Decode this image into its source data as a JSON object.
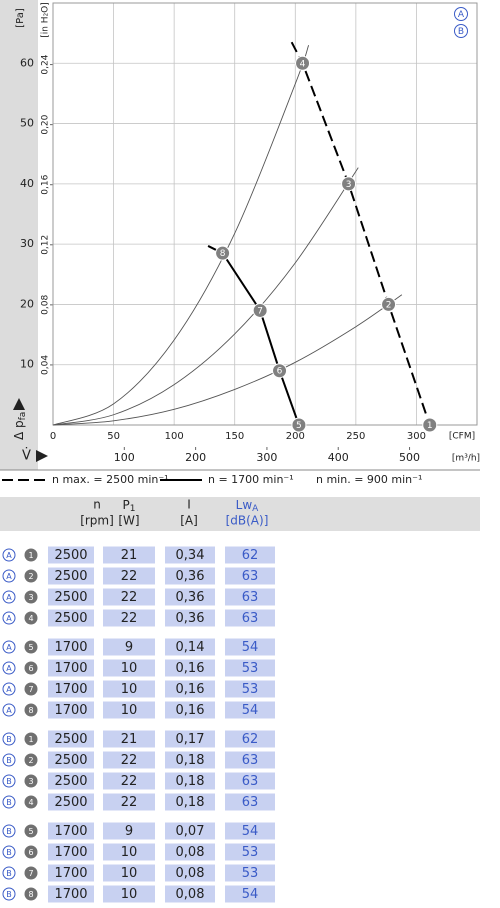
{
  "chart_data": {
    "type": "line",
    "y_unit": "[Pa]",
    "y2_unit": "[in H₂O]",
    "ylabel": {
      "text": "Δ p",
      "sub": "fa"
    },
    "xlabel": "V̇",
    "x_unit": "[CFM]",
    "x2_unit": "[m³/h]",
    "curve_sets": [
      "A",
      "B"
    ],
    "xlim": [
      0,
      350
    ],
    "xticks": [
      0,
      50,
      100,
      150,
      200,
      250,
      300
    ],
    "x2lim": [
      0,
      594.6
    ],
    "x2ticks": [
      100,
      200,
      300,
      400,
      500
    ],
    "ylim": [
      0,
      70
    ],
    "yticks": [
      10,
      20,
      30,
      40,
      50,
      60
    ],
    "y2lim": [
      0,
      0.281
    ],
    "y2ticks": [
      {
        "value": 0.04,
        "label": "0,04"
      },
      {
        "value": 0.08,
        "label": "0,08"
      },
      {
        "value": 0.12,
        "label": "0,12"
      },
      {
        "value": 0.16,
        "label": "0,16"
      },
      {
        "value": 0.2,
        "label": "0,20"
      },
      {
        "value": 0.24,
        "label": "0,24"
      }
    ],
    "grid": true,
    "series": [
      {
        "name": "n max. = 2500 min⁻¹",
        "color": "#000000",
        "style": "dashed",
        "x": [
          197,
          206,
          244,
          277,
          311
        ],
        "values": [
          63.5,
          60,
          40,
          20,
          0
        ]
      },
      {
        "name": "n = 1700 min⁻¹",
        "color": "#000000",
        "style": "solid",
        "x": [
          128,
          140,
          171,
          187,
          203
        ],
        "values": [
          29.7,
          28.5,
          19,
          9,
          0
        ]
      },
      {
        "color": "#555555",
        "style": "thin",
        "x": [
          0,
          50,
          100,
          150,
          200,
          211
        ],
        "values": [
          0,
          3.5,
          14.1,
          31.8,
          56.6,
          63
        ]
      },
      {
        "color": "#555555",
        "style": "thin",
        "x": [
          0,
          50,
          100,
          150,
          200,
          252
        ],
        "values": [
          0,
          1.7,
          6.7,
          15.1,
          26.9,
          42.7
        ]
      },
      {
        "color": "#555555",
        "style": "thin",
        "x": [
          0,
          50,
          100,
          150,
          200,
          250,
          288
        ],
        "values": [
          0,
          0.7,
          2.6,
          5.9,
          10.4,
          16.3,
          21.6
        ]
      }
    ],
    "legend_extra": "n min. = 900 min⁻¹",
    "points": {
      "color": "#808080",
      "labels": [
        "1",
        "2",
        "3",
        "4",
        "5",
        "6",
        "7",
        "8"
      ],
      "x": [
        311,
        277,
        244,
        206,
        203,
        187,
        171,
        140
      ],
      "values": [
        0,
        20,
        40,
        60,
        0,
        9,
        19,
        28.5
      ]
    }
  },
  "table": {
    "columns": [
      {
        "name": "n",
        "unit": "[rpm]"
      },
      {
        "name": "P",
        "sub": "1",
        "unit": "[W]"
      },
      {
        "name": "I",
        "unit": "[A]"
      },
      {
        "name": "Lw",
        "sub": "A",
        "unit": "[dB(A)]"
      }
    ],
    "rows": [
      [
        "A",
        "1",
        "2500",
        "21",
        "0,34",
        "62"
      ],
      [
        "A",
        "2",
        "2500",
        "22",
        "0,36",
        "63"
      ],
      [
        "A",
        "3",
        "2500",
        "22",
        "0,36",
        "63"
      ],
      [
        "A",
        "4",
        "2500",
        "22",
        "0,36",
        "63"
      ],
      [
        "A",
        "5",
        "1700",
        "9",
        "0,14",
        "54"
      ],
      [
        "A",
        "6",
        "1700",
        "10",
        "0,16",
        "53"
      ],
      [
        "A",
        "7",
        "1700",
        "10",
        "0,16",
        "53"
      ],
      [
        "A",
        "8",
        "1700",
        "10",
        "0,16",
        "54"
      ],
      [
        "B",
        "1",
        "2500",
        "21",
        "0,17",
        "62"
      ],
      [
        "B",
        "2",
        "2500",
        "22",
        "0,18",
        "63"
      ],
      [
        "B",
        "3",
        "2500",
        "22",
        "0,18",
        "63"
      ],
      [
        "B",
        "4",
        "2500",
        "22",
        "0,18",
        "63"
      ],
      [
        "B",
        "5",
        "1700",
        "9",
        "0,07",
        "54"
      ],
      [
        "B",
        "6",
        "1700",
        "10",
        "0,08",
        "53"
      ],
      [
        "B",
        "7",
        "1700",
        "10",
        "0,08",
        "53"
      ],
      [
        "B",
        "8",
        "1700",
        "10",
        "0,08",
        "54"
      ]
    ]
  }
}
